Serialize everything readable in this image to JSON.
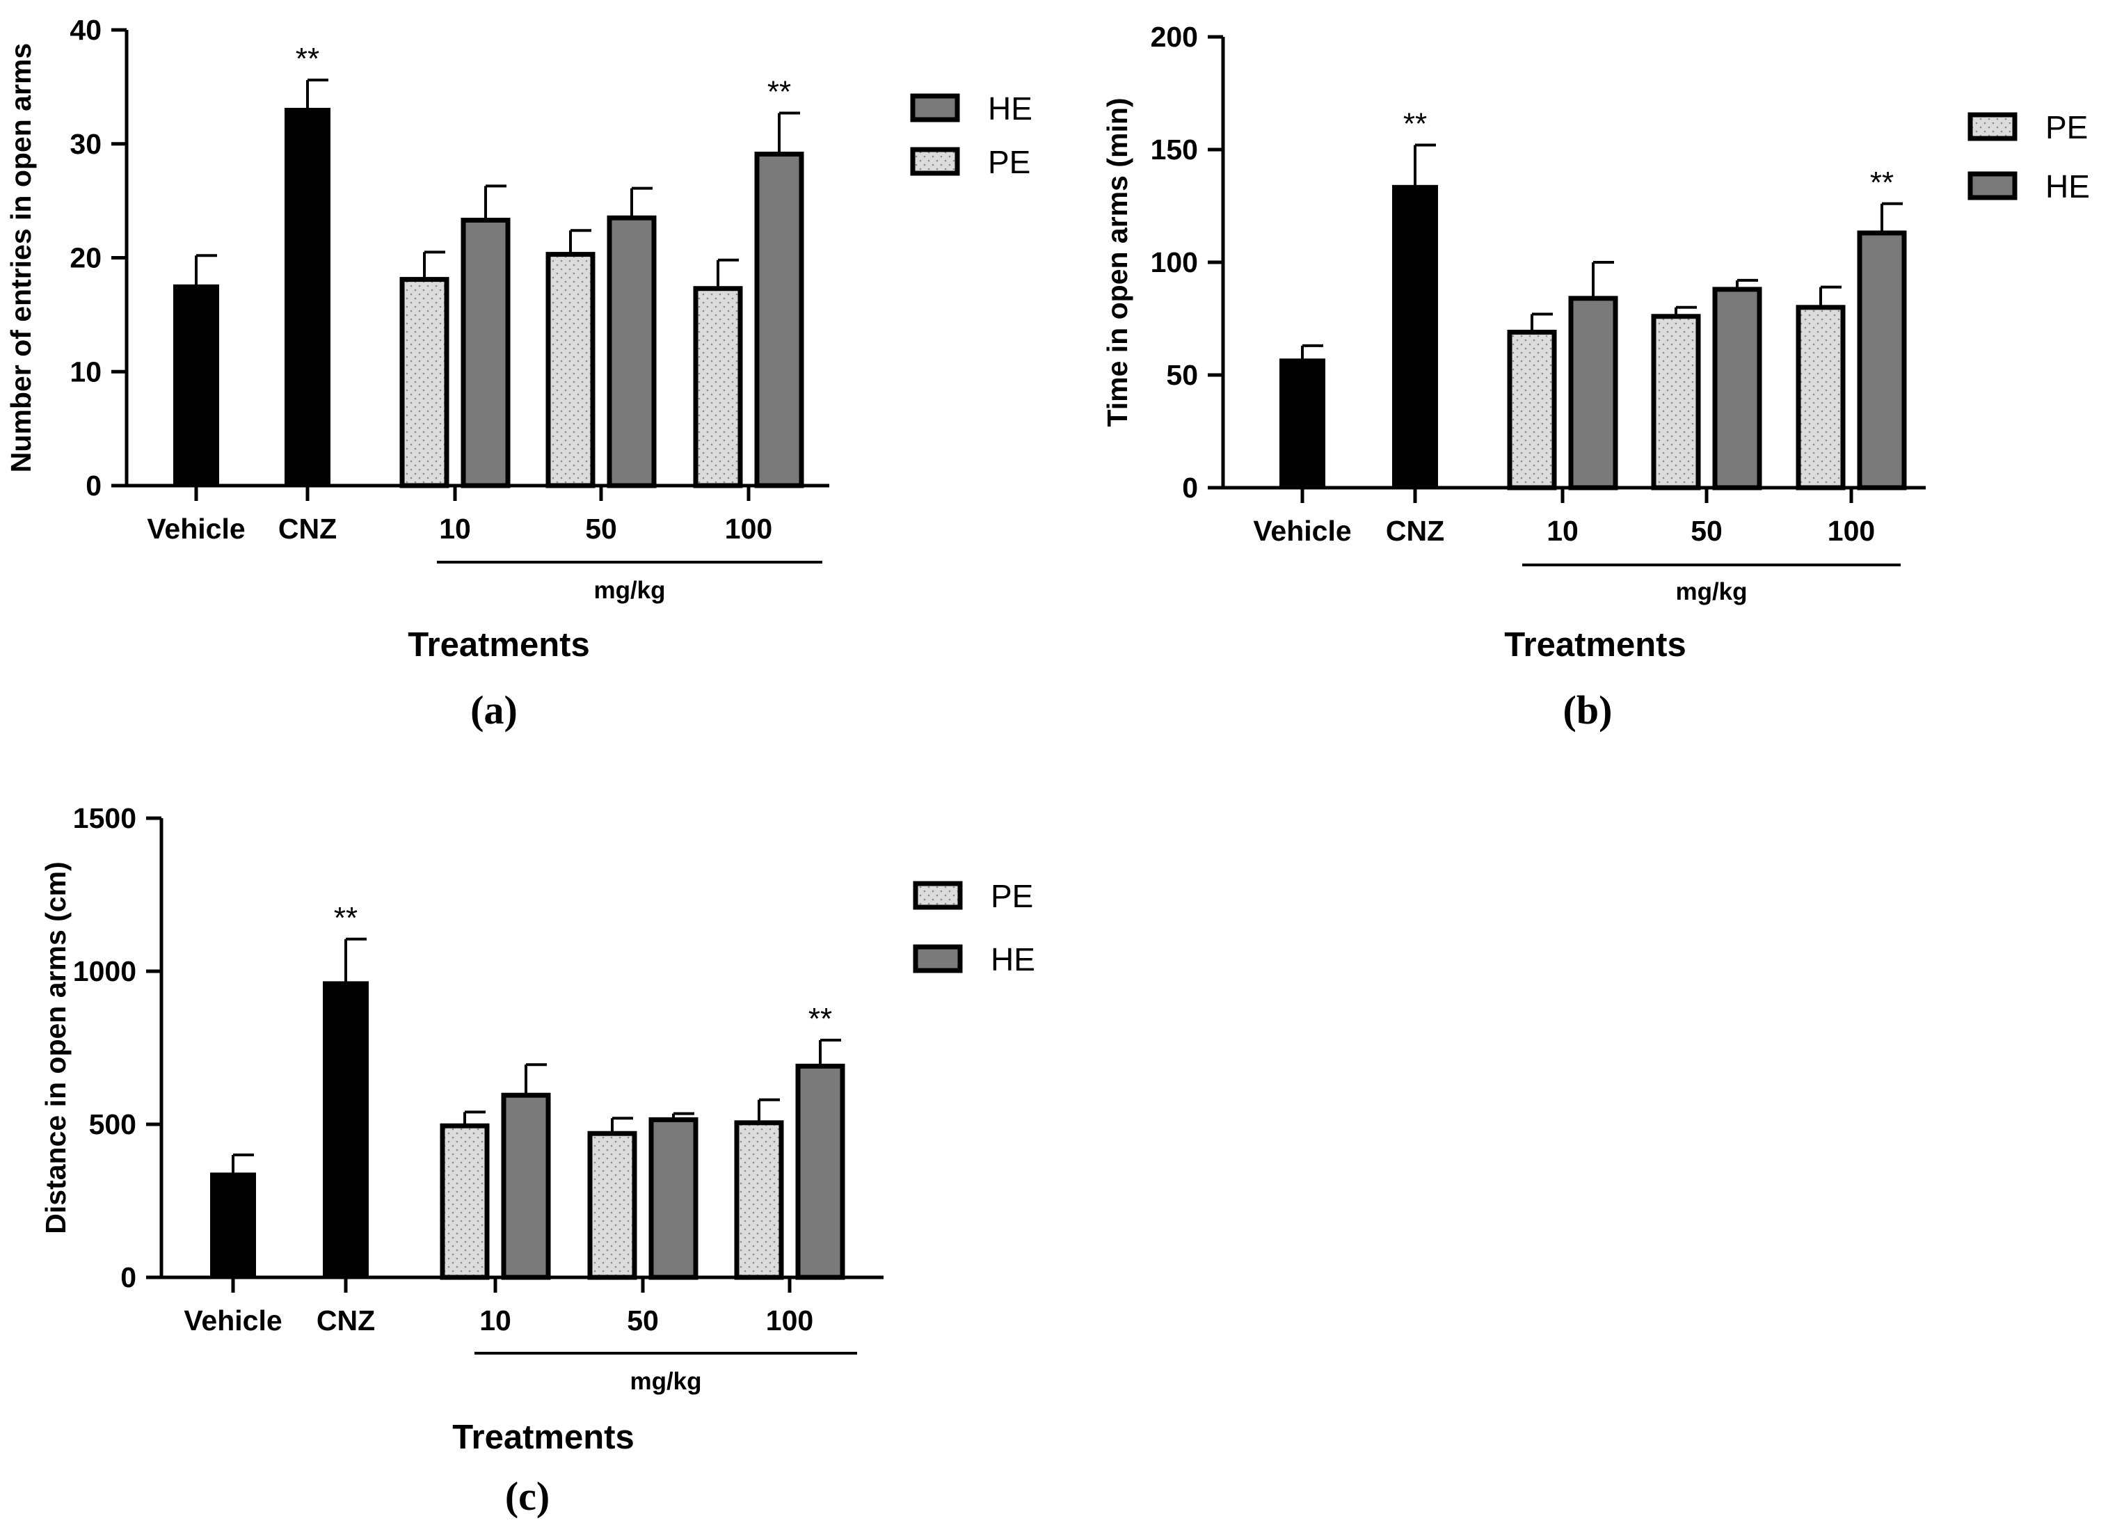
{
  "colors": {
    "control": "#000000",
    "HE": "#7a7a7a",
    "PE": "#dcdcdc",
    "outline": "#000000"
  },
  "chart_data": [
    {
      "panel": "(a)",
      "type": "bar",
      "ylabel": "Number of entries in open arms",
      "xlabel": "Treatments",
      "unit_label": "mg/kg",
      "ylim": [
        0,
        40
      ],
      "yticks": [
        0,
        10,
        20,
        30,
        40
      ],
      "legend": [
        "HE",
        "PE"
      ],
      "legend_position": "top-right",
      "groups": [
        {
          "label": "Vehicle",
          "bars": [
            {
              "series": "control",
              "value": 17.6,
              "error": 2.6
            }
          ]
        },
        {
          "label": "CNZ",
          "bars": [
            {
              "series": "control",
              "value": 33.1,
              "error": 2.5,
              "sig": "**"
            }
          ]
        },
        {
          "label": "10",
          "bars": [
            {
              "series": "PE",
              "value": 18.1,
              "error": 2.4
            },
            {
              "series": "HE",
              "value": 23.3,
              "error": 3.0
            }
          ]
        },
        {
          "label": "50",
          "bars": [
            {
              "series": "PE",
              "value": 20.3,
              "error": 2.1
            },
            {
              "series": "HE",
              "value": 23.5,
              "error": 2.6
            }
          ]
        },
        {
          "label": "100",
          "bars": [
            {
              "series": "PE",
              "value": 17.3,
              "error": 2.5
            },
            {
              "series": "HE",
              "value": 29.1,
              "error": 3.6,
              "sig": "**"
            }
          ]
        }
      ]
    },
    {
      "panel": "(b)",
      "type": "bar",
      "ylabel": "Time in open arms (min)",
      "xlabel": "Treatments",
      "unit_label": "mg/kg",
      "ylim": [
        0,
        200
      ],
      "yticks": [
        0,
        50,
        100,
        150,
        200
      ],
      "legend": [
        "PE",
        "HE"
      ],
      "legend_position": "top-right",
      "groups": [
        {
          "label": "Vehicle",
          "bars": [
            {
              "series": "control",
              "value": 57,
              "error": 6
            }
          ]
        },
        {
          "label": "CNZ",
          "bars": [
            {
              "series": "control",
              "value": 134,
              "error": 18,
              "sig": "**"
            }
          ]
        },
        {
          "label": "10",
          "bars": [
            {
              "series": "PE",
              "value": 69,
              "error": 8
            },
            {
              "series": "HE",
              "value": 84,
              "error": 16
            }
          ]
        },
        {
          "label": "50",
          "bars": [
            {
              "series": "PE",
              "value": 76,
              "error": 4
            },
            {
              "series": "HE",
              "value": 88,
              "error": 4
            }
          ]
        },
        {
          "label": "100",
          "bars": [
            {
              "series": "PE",
              "value": 80,
              "error": 9
            },
            {
              "series": "HE",
              "value": 113,
              "error": 13,
              "sig": "**"
            }
          ]
        }
      ]
    },
    {
      "panel": "(c)",
      "type": "bar",
      "ylabel": "Distance in open arms (cm)",
      "xlabel": "Treatments",
      "unit_label": "mg/kg",
      "ylim": [
        0,
        1500
      ],
      "yticks": [
        0,
        500,
        1000,
        1500
      ],
      "legend": [
        "PE",
        "HE"
      ],
      "legend_position": "top-right",
      "groups": [
        {
          "label": "Vehicle",
          "bars": [
            {
              "series": "control",
              "value": 340,
              "error": 60
            }
          ]
        },
        {
          "label": "CNZ",
          "bars": [
            {
              "series": "control",
              "value": 965,
              "error": 140,
              "sig": "**"
            }
          ]
        },
        {
          "label": "10",
          "bars": [
            {
              "series": "PE",
              "value": 495,
              "error": 45
            },
            {
              "series": "HE",
              "value": 595,
              "error": 100
            }
          ]
        },
        {
          "label": "50",
          "bars": [
            {
              "series": "PE",
              "value": 470,
              "error": 50
            },
            {
              "series": "HE",
              "value": 515,
              "error": 20
            }
          ]
        },
        {
          "label": "100",
          "bars": [
            {
              "series": "PE",
              "value": 505,
              "error": 75
            },
            {
              "series": "HE",
              "value": 690,
              "error": 85,
              "sig": "**"
            }
          ]
        }
      ]
    }
  ]
}
